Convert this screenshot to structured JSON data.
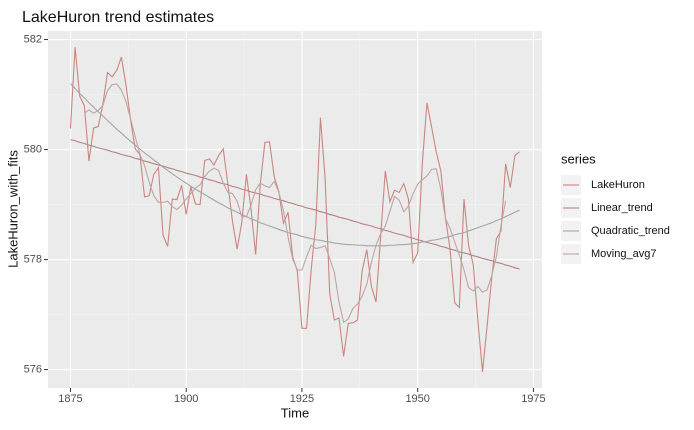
{
  "chart_data": {
    "type": "line",
    "title": "LakeHuron trend estimates",
    "x_label": "Time",
    "y_label": "LakeHuron_with_fits",
    "legend_title": "series",
    "legend": "right",
    "grid": true,
    "xlim": [
      1870.15,
      1976.85
    ],
    "xticks": [
      1875,
      1900,
      1925,
      1950,
      1975
    ],
    "ylim": [
      575.665,
      582.155
    ],
    "yticks": [
      576,
      578,
      580,
      582
    ],
    "x": [
      1875,
      1876,
      1877,
      1878,
      1879,
      1880,
      1881,
      1882,
      1883,
      1884,
      1885,
      1886,
      1887,
      1888,
      1889,
      1890,
      1891,
      1892,
      1893,
      1894,
      1895,
      1896,
      1897,
      1898,
      1899,
      1900,
      1901,
      1902,
      1903,
      1904,
      1905,
      1906,
      1907,
      1908,
      1909,
      1910,
      1911,
      1912,
      1913,
      1914,
      1915,
      1916,
      1917,
      1918,
      1919,
      1920,
      1921,
      1922,
      1923,
      1924,
      1925,
      1926,
      1927,
      1928,
      1929,
      1930,
      1931,
      1932,
      1933,
      1934,
      1935,
      1936,
      1937,
      1938,
      1939,
      1940,
      1941,
      1942,
      1943,
      1944,
      1945,
      1946,
      1947,
      1948,
      1949,
      1950,
      1951,
      1952,
      1953,
      1954,
      1955,
      1956,
      1957,
      1958,
      1959,
      1960,
      1961,
      1962,
      1963,
      1964,
      1965,
      1966,
      1967,
      1968,
      1969,
      1970,
      1971,
      1972
    ],
    "series": [
      {
        "name": "LakeHuron",
        "color": "#c98680",
        "values": [
          580.38,
          581.86,
          580.97,
          580.8,
          579.79,
          580.39,
          580.42,
          580.82,
          581.4,
          581.32,
          581.44,
          581.68,
          581.17,
          580.53,
          580.01,
          579.91,
          579.14,
          579.16,
          579.55,
          579.67,
          578.44,
          578.24,
          579.1,
          579.09,
          579.35,
          578.82,
          579.32,
          579.01,
          579.0,
          579.8,
          579.83,
          579.72,
          579.89,
          580.01,
          579.37,
          578.69,
          578.19,
          578.67,
          579.55,
          578.92,
          578.09,
          579.37,
          580.13,
          580.14,
          579.51,
          579.24,
          578.66,
          578.86,
          578.05,
          577.79,
          576.75,
          576.75,
          577.82,
          578.64,
          580.58,
          579.48,
          577.38,
          576.9,
          576.94,
          576.24,
          576.84,
          576.85,
          576.9,
          577.79,
          578.18,
          577.51,
          577.23,
          578.42,
          579.61,
          579.05,
          579.26,
          579.22,
          579.38,
          579.1,
          577.95,
          578.12,
          579.75,
          580.85,
          580.41,
          579.96,
          579.61,
          578.76,
          578.18,
          577.21,
          577.13,
          579.1,
          578.25,
          577.91,
          576.89,
          575.96,
          576.8,
          577.68,
          578.38,
          578.52,
          579.74,
          579.31,
          579.89,
          579.96
        ]
      },
      {
        "name": "Linear_trend",
        "color": "#b5837e",
        "values": [
          580.18,
          580.16,
          580.13,
          580.11,
          580.08,
          580.06,
          580.03,
          580.01,
          579.99,
          579.96,
          579.94,
          579.91,
          579.89,
          579.87,
          579.84,
          579.82,
          579.79,
          579.77,
          579.74,
          579.72,
          579.7,
          579.67,
          579.65,
          579.62,
          579.6,
          579.57,
          579.55,
          579.53,
          579.5,
          579.48,
          579.45,
          579.43,
          579.4,
          579.38,
          579.36,
          579.33,
          579.31,
          579.28,
          579.26,
          579.23,
          579.21,
          579.19,
          579.16,
          579.14,
          579.11,
          579.09,
          579.07,
          579.04,
          579.02,
          578.99,
          578.97,
          578.94,
          578.92,
          578.9,
          578.87,
          578.85,
          578.82,
          578.8,
          578.77,
          578.75,
          578.73,
          578.7,
          578.68,
          578.65,
          578.63,
          578.61,
          578.58,
          578.56,
          578.53,
          578.51,
          578.48,
          578.46,
          578.44,
          578.41,
          578.39,
          578.36,
          578.34,
          578.31,
          578.29,
          578.27,
          578.24,
          578.22,
          578.19,
          578.17,
          578.14,
          578.12,
          578.1,
          578.07,
          578.05,
          578.02,
          578.0,
          577.98,
          577.95,
          577.93,
          577.9,
          577.88,
          577.85,
          577.83
        ]
      },
      {
        "name": "Quadratic_trend",
        "color": "#a5a5a5",
        "values": [
          581.2,
          581.11,
          581.02,
          580.94,
          580.85,
          580.77,
          580.69,
          580.61,
          580.53,
          580.45,
          580.37,
          580.3,
          580.22,
          580.15,
          580.08,
          580.01,
          579.94,
          579.88,
          579.81,
          579.75,
          579.68,
          579.62,
          579.56,
          579.5,
          579.44,
          579.39,
          579.33,
          579.28,
          579.23,
          579.18,
          579.13,
          579.08,
          579.03,
          578.99,
          578.94,
          578.9,
          578.86,
          578.82,
          578.78,
          578.74,
          578.71,
          578.67,
          578.64,
          578.61,
          578.58,
          578.55,
          578.52,
          578.49,
          578.47,
          578.45,
          578.42,
          578.4,
          578.38,
          578.36,
          578.35,
          578.33,
          578.32,
          578.3,
          578.29,
          578.28,
          578.27,
          578.27,
          578.26,
          578.26,
          578.25,
          578.25,
          578.25,
          578.25,
          578.25,
          578.26,
          578.26,
          578.27,
          578.27,
          578.28,
          578.29,
          578.3,
          578.32,
          578.33,
          578.35,
          578.36,
          578.38,
          578.4,
          578.42,
          578.45,
          578.47,
          578.49,
          578.52,
          578.55,
          578.58,
          578.61,
          578.64,
          578.67,
          578.71,
          578.74,
          578.78,
          578.82,
          578.86,
          578.9
        ]
      },
      {
        "name": "Moving_avg7",
        "color": "#c0a4a2",
        "values": [
          null,
          null,
          null,
          580.66,
          580.72,
          580.66,
          580.71,
          580.8,
          581.07,
          581.18,
          581.19,
          581.08,
          580.87,
          580.55,
          580.23,
          579.92,
          579.71,
          579.41,
          579.16,
          579.04,
          579.04,
          579.06,
          578.96,
          578.91,
          578.99,
          579.1,
          579.2,
          579.3,
          579.36,
          579.51,
          579.61,
          579.66,
          579.62,
          579.39,
          579.22,
          579.2,
          579.06,
          578.78,
          578.78,
          578.99,
          579.27,
          579.39,
          579.34,
          579.31,
          579.42,
          579.23,
          578.89,
          578.41,
          578.01,
          577.81,
          577.81,
          578.05,
          578.26,
          578.2,
          578.22,
          578.25,
          578.02,
          577.77,
          577.23,
          576.86,
          576.92,
          577.11,
          577.19,
          577.33,
          577.55,
          577.95,
          578.26,
          578.47,
          578.61,
          578.88,
          579.15,
          579.08,
          578.87,
          578.97,
          579.2,
          579.37,
          579.45,
          579.52,
          579.64,
          579.65,
          579.28,
          578.75,
          578.56,
          578.32,
          578.08,
          577.81,
          577.49,
          577.43,
          577.51,
          577.41,
          577.45,
          577.71,
          578.06,
          578.62,
          579.07,
          null,
          null,
          null
        ]
      }
    ]
  }
}
